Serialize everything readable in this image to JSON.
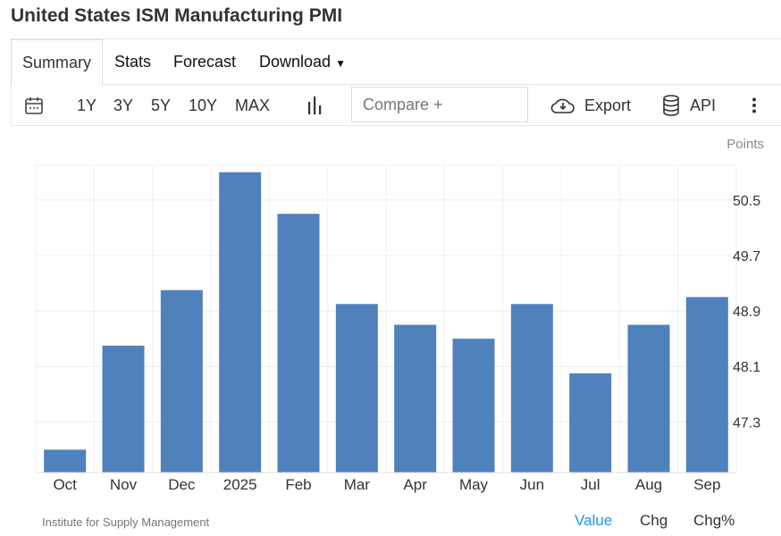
{
  "title": "United States ISM Manufacturing PMI",
  "tabs": [
    "Summary",
    "Stats",
    "Forecast",
    "Download"
  ],
  "toolbar": {
    "ranges": [
      "1Y",
      "3Y",
      "5Y",
      "10Y",
      "MAX"
    ],
    "compare_placeholder": "Compare +",
    "export": "Export",
    "api": "API"
  },
  "units": "Points",
  "source": "Institute for Supply Management",
  "view_toggle": [
    "Value",
    "Chg",
    "Chg%"
  ],
  "colors": {
    "bar": "#4f81bd",
    "active": "#2196f3"
  },
  "chart_data": {
    "type": "bar",
    "title": "United States ISM Manufacturing PMI",
    "ylabel": "Points",
    "categories": [
      "Oct",
      "Nov",
      "Dec",
      "2025",
      "Feb",
      "Mar",
      "Apr",
      "May",
      "Jun",
      "Jul",
      "Aug",
      "Sep"
    ],
    "values": [
      46.9,
      48.4,
      49.2,
      50.9,
      50.3,
      49.0,
      48.7,
      48.5,
      49.0,
      48.0,
      48.7,
      49.1
    ],
    "yticks": [
      "47.3",
      "48.1",
      "48.9",
      "49.7",
      "50.5"
    ],
    "ylim": [
      46.57,
      51.0
    ],
    "grid": true
  }
}
